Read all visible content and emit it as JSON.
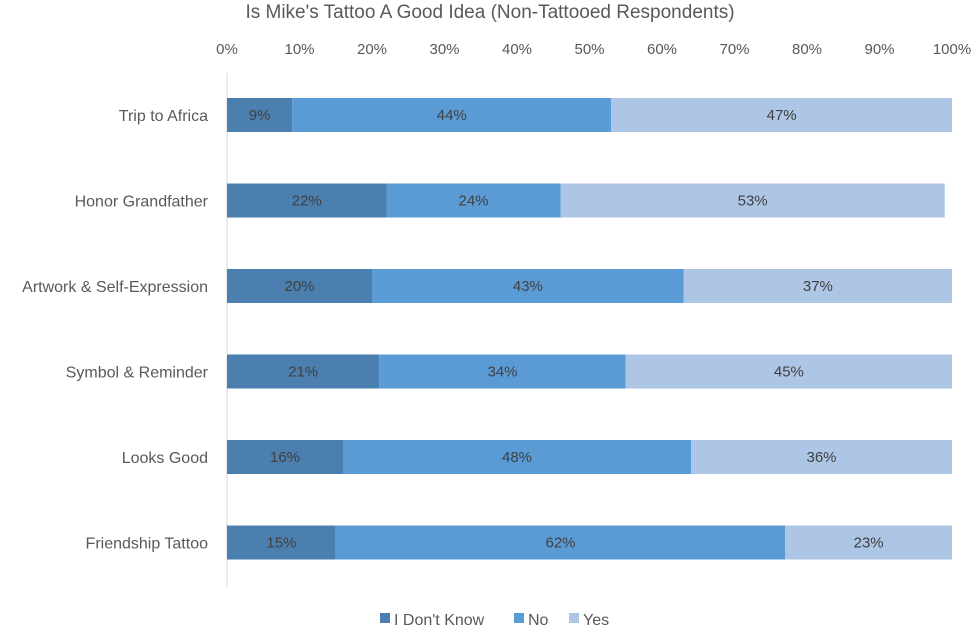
{
  "chart_data": {
    "type": "bar",
    "orientation": "horizontal",
    "stacked": "percent",
    "title": "Is Mike's Tattoo A Good Idea (Non-Tattooed Respondents)",
    "xlabel": "",
    "ylabel": "",
    "xlim": [
      0,
      100
    ],
    "x_ticks": [
      "0%",
      "10%",
      "20%",
      "30%",
      "40%",
      "50%",
      "60%",
      "70%",
      "80%",
      "90%",
      "100%"
    ],
    "x_axis_position": "top",
    "grid": false,
    "legend_position": "bottom",
    "categories": [
      "Trip to Africa",
      "Honor Grandfather",
      "Artwork & Self-Expression",
      "Symbol & Reminder",
      "Looks Good",
      "Friendship Tattoo"
    ],
    "series": [
      {
        "name": "I Don't Know",
        "color": "#4a7fb0",
        "values": [
          9,
          22,
          20,
          21,
          16,
          15
        ],
        "labels": [
          "9%",
          "22%",
          "20%",
          "21%",
          "16%",
          "15%"
        ]
      },
      {
        "name": "No",
        "color": "#5b9bd5",
        "values": [
          44,
          24,
          43,
          34,
          48,
          62
        ],
        "labels": [
          "44%",
          "24%",
          "43%",
          "34%",
          "48%",
          "62%"
        ]
      },
      {
        "name": "Yes",
        "color": "#adc6e5",
        "values": [
          47,
          53,
          37,
          45,
          36,
          23
        ],
        "labels": [
          "47%",
          "53%",
          "37%",
          "45%",
          "36%",
          "23%"
        ]
      }
    ]
  }
}
